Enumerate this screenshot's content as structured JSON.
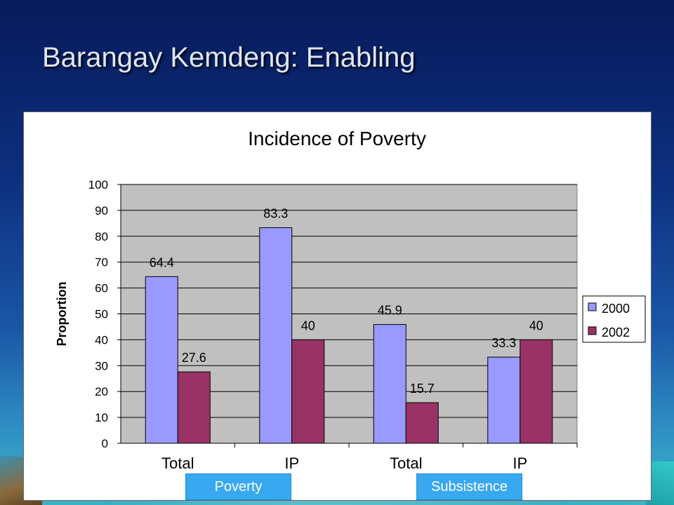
{
  "slide": {
    "title": "Barangay Kemdeng: Enabling"
  },
  "groups": [
    "Poverty",
    "Subsistence"
  ],
  "chart_data": {
    "type": "bar",
    "title": "Incidence of Poverty",
    "xlabel": "",
    "ylabel": "Proportion",
    "ylim": [
      0,
      100
    ],
    "yticks": [
      0,
      10,
      20,
      30,
      40,
      50,
      60,
      70,
      80,
      90,
      100
    ],
    "categories": [
      "Total",
      "IP",
      "Total",
      "IP"
    ],
    "series": [
      {
        "name": "2000",
        "values": [
          64.4,
          83.3,
          45.9,
          33.3
        ],
        "color": "#9999ff"
      },
      {
        "name": "2002",
        "values": [
          27.6,
          40,
          15.7,
          40
        ],
        "color": "#993366"
      }
    ],
    "data_labels": [
      [
        "64.4",
        "83.3",
        "45.9",
        "33.3"
      ],
      [
        "27.6",
        "40",
        "15.7",
        "40"
      ]
    ],
    "plot_background": "#c0c0c0",
    "grid": true,
    "legend_position": "right"
  }
}
